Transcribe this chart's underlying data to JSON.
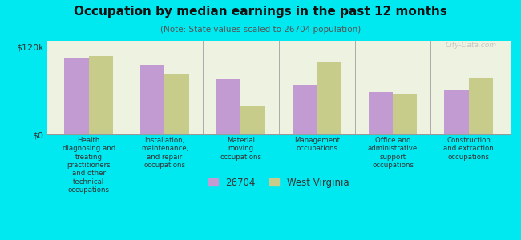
{
  "title": "Occupation by median earnings in the past 12 months",
  "subtitle": "(Note: State values scaled to 26704 population)",
  "background_color": "#00e8f0",
  "plot_bg_color": "#eef2e0",
  "categories": [
    "Health\ndiagnosing and\ntreating\npractitioners\nand other\ntechnical\noccupations",
    "Installation,\nmaintenance,\nand repair\noccupations",
    "Material\nmoving\noccupations",
    "Management\noccupations",
    "Office and\nadministrative\nsupport\noccupations",
    "Construction\nand extraction\noccupations"
  ],
  "values_26704": [
    105000,
    95000,
    75000,
    68000,
    58000,
    60000
  ],
  "values_wv": [
    107000,
    82000,
    38000,
    100000,
    55000,
    78000
  ],
  "color_26704": "#c39bd3",
  "color_wv": "#c8cc8a",
  "ylim": [
    0,
    128000
  ],
  "yticks": [
    0,
    120000
  ],
  "ytick_labels": [
    "$0",
    "$120k"
  ],
  "legend_label_26704": "26704",
  "legend_label_wv": "West Virginia",
  "watermark": "City-Data.com"
}
